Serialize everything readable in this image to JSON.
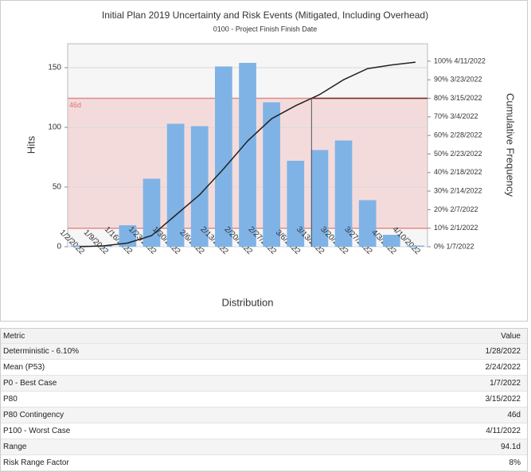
{
  "chart_data": {
    "type": "bar",
    "title": "Initial  Plan 2019 Uncertainty and Risk Events (Mitigated, Including Overhead)",
    "subtitle": "0100 - Project Finish Finish Date",
    "x_label": "Distribution",
    "y_label": "Hits",
    "y2_label": "Cumulative Frequency",
    "categories": [
      "1/2/2022",
      "1/9/2022",
      "1/16/2022",
      "1/23/2022",
      "1/30/2022",
      "2/6/2022",
      "2/13/2022",
      "2/20/2022",
      "2/27/2022",
      "3/6/2022",
      "3/13/2022",
      "3/20/2022",
      "3/27/2022",
      "4/3/2022",
      "4/10/2022"
    ],
    "values": [
      1,
      1,
      18,
      57,
      103,
      101,
      151,
      154,
      121,
      72,
      81,
      89,
      39,
      10,
      1
    ],
    "color": "#7fb3e6",
    "cumulative_values": [
      0,
      0.5,
      2,
      6,
      17,
      28,
      42,
      57,
      69,
      76,
      82,
      90,
      96,
      98,
      99.5
    ],
    "cumulative_color": "#222222",
    "ylim": [
      0,
      170
    ],
    "yticks": [
      0,
      50,
      100,
      150
    ],
    "y2lim": [
      0,
      109.4
    ],
    "y2ticks": [
      {
        "value": 0,
        "label": "0% 1/7/2022"
      },
      {
        "value": 10,
        "label": "10% 2/1/2022"
      },
      {
        "value": 20,
        "label": "20% 2/7/2022"
      },
      {
        "value": 30,
        "label": "30% 2/14/2022"
      },
      {
        "value": 40,
        "label": "40% 2/18/2022"
      },
      {
        "value": 50,
        "label": "50% 2/23/2022"
      },
      {
        "value": 60,
        "label": "60% 2/28/2022"
      },
      {
        "value": 70,
        "label": "70% 3/4/2022"
      },
      {
        "value": 80,
        "label": "80% 3/15/2022"
      },
      {
        "value": 90,
        "label": "90% 3/23/2022"
      },
      {
        "value": 100,
        "label": "100% 4/11/2022"
      }
    ],
    "band": [
      10,
      80
    ],
    "band_label": "46d",
    "grid": true
  },
  "table": {
    "header": [
      "Metric",
      "Value"
    ],
    "rows": [
      [
        "Deterministic - 6.10%",
        "1/28/2022"
      ],
      [
        "Mean (P53)",
        "2/24/2022"
      ],
      [
        "P0 - Best Case",
        "1/7/2022"
      ],
      [
        "P80",
        "3/15/2022"
      ],
      [
        "P80 Contingency",
        "46d"
      ],
      [
        "P100 - Worst Case",
        "4/11/2022"
      ],
      [
        "Range",
        "94.1d"
      ],
      [
        "Risk Range Factor",
        "8%"
      ]
    ]
  }
}
